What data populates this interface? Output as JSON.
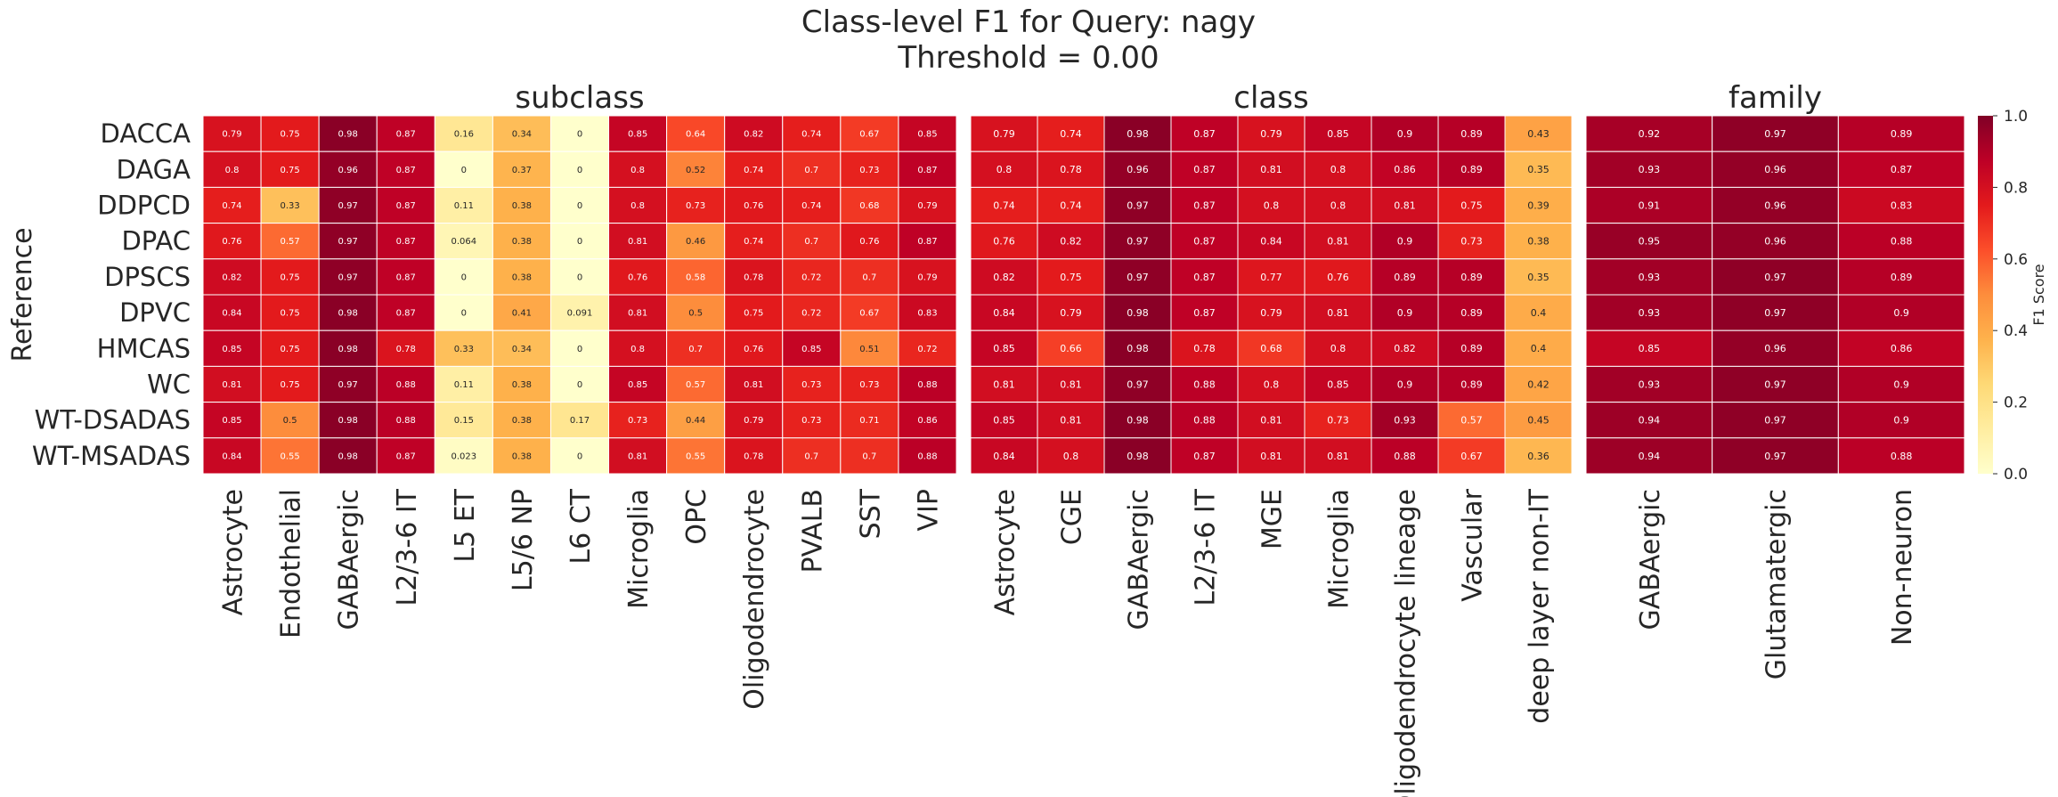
{
  "chart_data": {
    "type": "heatmap",
    "title_line1": "Class-level F1 for Query: nagy",
    "title_line2": "Threshold = 0.00",
    "ylabel": "Reference",
    "colorbar_label": "F1 Score",
    "colorbar_ticks": [
      "0.0",
      "0.2",
      "0.4",
      "0.6",
      "0.8",
      "1.0"
    ],
    "colorbar_range": [
      0,
      1
    ],
    "colormap": "YlOrRd",
    "colors": [
      "#ffffcc",
      "#ffeda0",
      "#fed976",
      "#feb24c",
      "#fd8d3c",
      "#fc4e2a",
      "#e31a1c",
      "#bd0026",
      "#800026"
    ],
    "rows": [
      "DACCA",
      "DAGA",
      "DDPCD",
      "DPAC",
      "DPSCS",
      "DPVC",
      "HMCAS",
      "WC",
      "WT-DSADAS",
      "WT-MSADAS"
    ],
    "panels": [
      {
        "name": "subclass",
        "columns": [
          "Astrocyte",
          "Endothelial",
          "GABAergic",
          "L2/3-6 IT",
          "L5 ET",
          "L5/6 NP",
          "L6 CT",
          "Microglia",
          "OPC",
          "Oligodendrocyte",
          "PVALB",
          "SST",
          "VIP"
        ],
        "values": [
          [
            0.79,
            0.75,
            0.98,
            0.87,
            0.16,
            0.34,
            0,
            0.85,
            0.64,
            0.82,
            0.74,
            0.67,
            0.85
          ],
          [
            0.8,
            0.75,
            0.96,
            0.87,
            0,
            0.37,
            0,
            0.8,
            0.52,
            0.74,
            0.7,
            0.73,
            0.87
          ],
          [
            0.74,
            0.33,
            0.97,
            0.87,
            0.11,
            0.38,
            0,
            0.8,
            0.73,
            0.76,
            0.74,
            0.68,
            0.79
          ],
          [
            0.76,
            0.57,
            0.97,
            0.87,
            0.064,
            0.38,
            0,
            0.81,
            0.46,
            0.74,
            0.7,
            0.76,
            0.87
          ],
          [
            0.82,
            0.75,
            0.97,
            0.87,
            0,
            0.38,
            0,
            0.76,
            0.58,
            0.78,
            0.72,
            0.7,
            0.79
          ],
          [
            0.84,
            0.75,
            0.98,
            0.87,
            0,
            0.41,
            0.091,
            0.81,
            0.5,
            0.75,
            0.72,
            0.67,
            0.83
          ],
          [
            0.85,
            0.75,
            0.98,
            0.78,
            0.33,
            0.34,
            0,
            0.8,
            0.7,
            0.76,
            0.85,
            0.51,
            0.72
          ],
          [
            0.81,
            0.75,
            0.97,
            0.88,
            0.11,
            0.38,
            0,
            0.85,
            0.57,
            0.81,
            0.73,
            0.73,
            0.88
          ],
          [
            0.85,
            0.5,
            0.98,
            0.88,
            0.15,
            0.38,
            0.17,
            0.73,
            0.44,
            0.79,
            0.73,
            0.71,
            0.86
          ],
          [
            0.84,
            0.55,
            0.98,
            0.87,
            0.023,
            0.38,
            0,
            0.81,
            0.55,
            0.78,
            0.7,
            0.7,
            0.88
          ]
        ]
      },
      {
        "name": "class",
        "columns": [
          "Astrocyte",
          "CGE",
          "GABAergic",
          "L2/3-6 IT",
          "MGE",
          "Microglia",
          "Oligodendrocyte lineage",
          "Vascular",
          "deep layer non-IT"
        ],
        "values": [
          [
            0.79,
            0.74,
            0.98,
            0.87,
            0.79,
            0.85,
            0.9,
            0.89,
            0.43
          ],
          [
            0.8,
            0.78,
            0.96,
            0.87,
            0.81,
            0.8,
            0.86,
            0.89,
            0.35
          ],
          [
            0.74,
            0.74,
            0.97,
            0.87,
            0.8,
            0.8,
            0.81,
            0.75,
            0.39
          ],
          [
            0.76,
            0.82,
            0.97,
            0.87,
            0.84,
            0.81,
            0.9,
            0.73,
            0.38
          ],
          [
            0.82,
            0.75,
            0.97,
            0.87,
            0.77,
            0.76,
            0.89,
            0.89,
            0.35
          ],
          [
            0.84,
            0.79,
            0.98,
            0.87,
            0.79,
            0.81,
            0.9,
            0.89,
            0.4
          ],
          [
            0.85,
            0.66,
            0.98,
            0.78,
            0.68,
            0.8,
            0.82,
            0.89,
            0.4
          ],
          [
            0.81,
            0.81,
            0.97,
            0.88,
            0.8,
            0.85,
            0.9,
            0.89,
            0.42
          ],
          [
            0.85,
            0.81,
            0.98,
            0.88,
            0.81,
            0.73,
            0.93,
            0.57,
            0.45
          ],
          [
            0.84,
            0.8,
            0.98,
            0.87,
            0.81,
            0.81,
            0.88,
            0.67,
            0.36
          ]
        ]
      },
      {
        "name": "family",
        "columns": [
          "GABAergic",
          "Glutamatergic",
          "Non-neuron"
        ],
        "values": [
          [
            0.92,
            0.97,
            0.89
          ],
          [
            0.93,
            0.96,
            0.87
          ],
          [
            0.91,
            0.96,
            0.83
          ],
          [
            0.95,
            0.96,
            0.88
          ],
          [
            0.93,
            0.97,
            0.89
          ],
          [
            0.93,
            0.97,
            0.9
          ],
          [
            0.85,
            0.96,
            0.86
          ],
          [
            0.93,
            0.97,
            0.9
          ],
          [
            0.94,
            0.97,
            0.9
          ],
          [
            0.94,
            0.97,
            0.88
          ]
        ]
      }
    ]
  }
}
